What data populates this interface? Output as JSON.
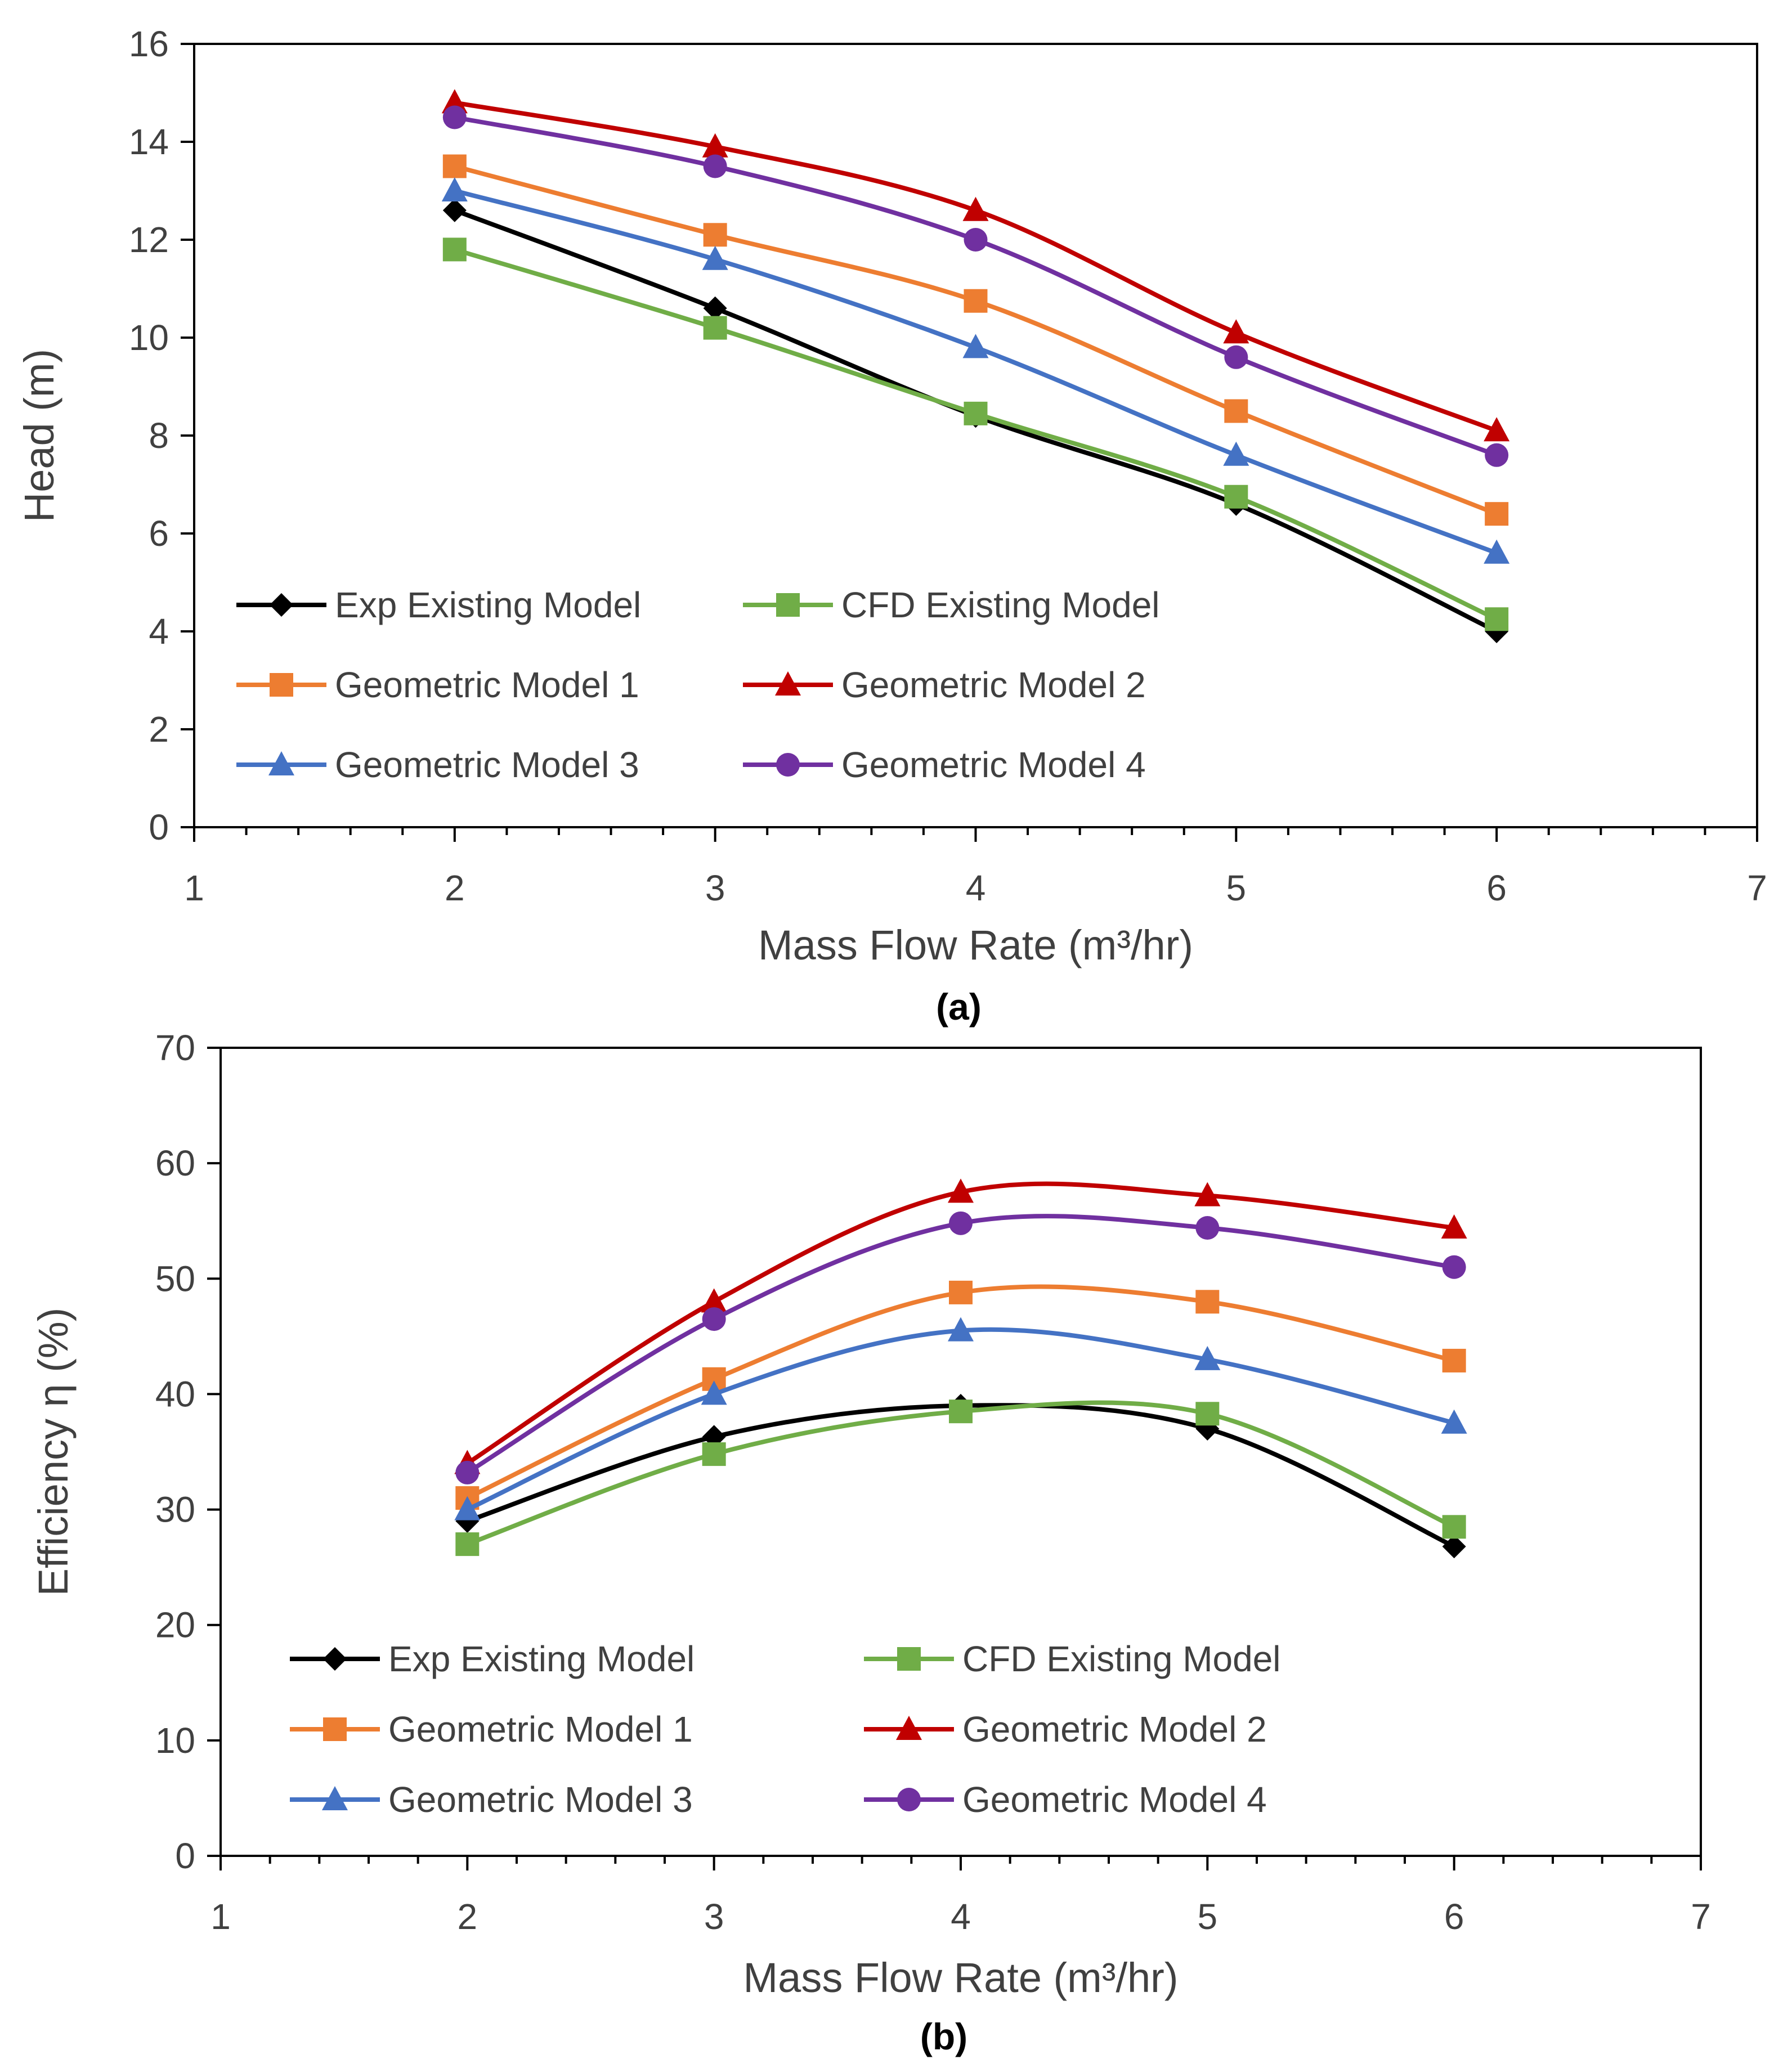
{
  "chart_data": [
    {
      "id": "a",
      "type": "line",
      "panel_label": "(a)",
      "xlabel": "Mass Flow Rate (m³/hr)",
      "ylabel": "Head (m)",
      "xlim": [
        1,
        7
      ],
      "ylim": [
        0,
        16
      ],
      "xticks": [
        1,
        2,
        3,
        4,
        5,
        6,
        7
      ],
      "yticks": [
        0,
        2,
        4,
        6,
        8,
        10,
        12,
        14,
        16
      ],
      "x": [
        2,
        3,
        4,
        5,
        6
      ],
      "grid": false,
      "legend_placement": "bottom-left, inside plot, 2 columns",
      "series": [
        {
          "name": "Exp Existing Model",
          "color": "#000000",
          "marker": "diamond",
          "values": [
            12.6,
            10.6,
            8.4,
            6.6,
            4.0
          ]
        },
        {
          "name": "CFD Existing Model",
          "color": "#70AD47",
          "marker": "square",
          "values": [
            11.8,
            10.2,
            8.45,
            6.75,
            4.25
          ]
        },
        {
          "name": "Geometric Model 1",
          "color": "#ED7D31",
          "marker": "square",
          "values": [
            13.5,
            12.1,
            10.75,
            8.5,
            6.4
          ]
        },
        {
          "name": "Geometric Model 2",
          "color": "#C00000",
          "marker": "triangle",
          "values": [
            14.8,
            13.9,
            12.6,
            10.1,
            8.1
          ]
        },
        {
          "name": "Geometric Model 3",
          "color": "#4472C4",
          "marker": "triangle",
          "values": [
            13.0,
            11.6,
            9.8,
            7.6,
            5.6
          ]
        },
        {
          "name": "Geometric Model 4",
          "color": "#7030A0",
          "marker": "circle",
          "values": [
            14.5,
            13.5,
            12.0,
            9.6,
            7.6
          ]
        }
      ]
    },
    {
      "id": "b",
      "type": "line",
      "panel_label": "(b)",
      "xlabel": "Mass Flow Rate (m³/hr)",
      "ylabel": "Efficiency η (%)",
      "xlim": [
        1,
        7
      ],
      "ylim": [
        0,
        70
      ],
      "xticks": [
        1,
        2,
        3,
        4,
        5,
        6,
        7
      ],
      "yticks": [
        0,
        10,
        20,
        30,
        40,
        50,
        60,
        70
      ],
      "x": [
        2,
        3,
        4,
        5,
        6
      ],
      "grid": false,
      "legend_placement": "bottom-left, inside plot, 2 columns",
      "series": [
        {
          "name": "Exp Existing Model",
          "color": "#000000",
          "marker": "diamond",
          "values": [
            29.0,
            36.3,
            39.0,
            37.0,
            26.8
          ]
        },
        {
          "name": "CFD Existing Model",
          "color": "#70AD47",
          "marker": "square",
          "values": [
            27.0,
            34.8,
            38.5,
            38.3,
            28.5
          ]
        },
        {
          "name": "Geometric Model 1",
          "color": "#ED7D31",
          "marker": "square",
          "values": [
            31.0,
            41.3,
            48.8,
            48.0,
            42.9
          ]
        },
        {
          "name": "Geometric Model 2",
          "color": "#C00000",
          "marker": "triangle",
          "values": [
            34.0,
            48.0,
            57.5,
            57.2,
            54.4
          ]
        },
        {
          "name": "Geometric Model 3",
          "color": "#4472C4",
          "marker": "triangle",
          "values": [
            30.0,
            40.0,
            45.5,
            43.0,
            37.5
          ]
        },
        {
          "name": "Geometric Model 4",
          "color": "#7030A0",
          "marker": "circle",
          "values": [
            33.2,
            46.5,
            54.8,
            54.4,
            51.0
          ]
        }
      ]
    }
  ]
}
